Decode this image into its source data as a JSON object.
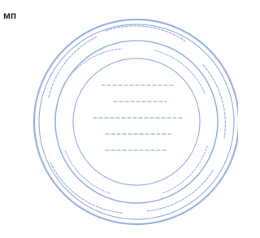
{
  "document": {
    "label": "мп"
  }
}
